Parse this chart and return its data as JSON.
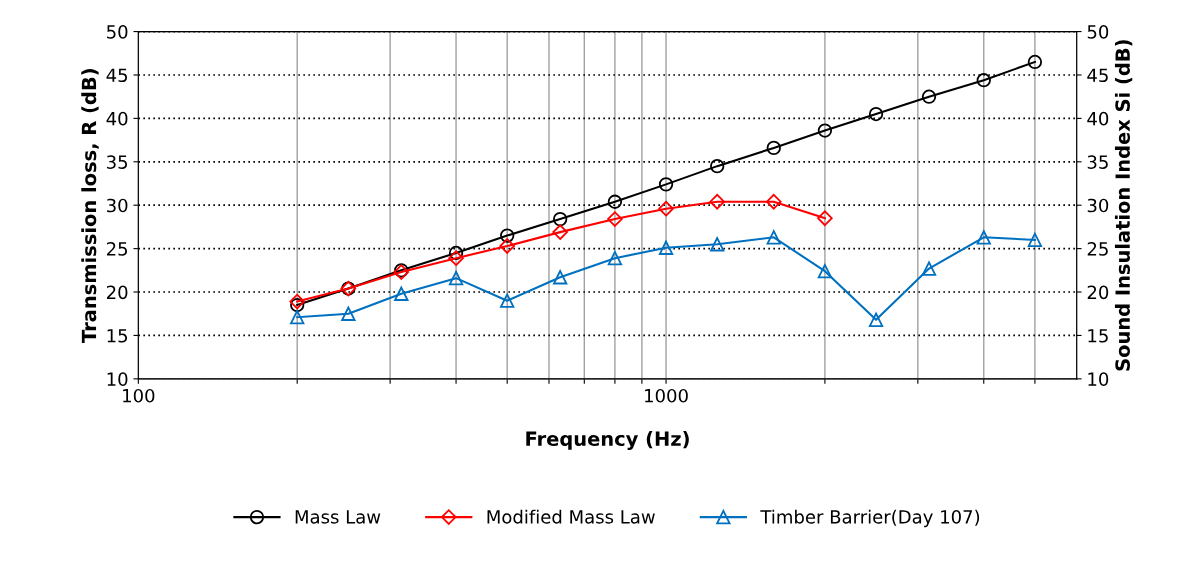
{
  "chart_data": {
    "type": "line",
    "xlabel": "Frequency (Hz)",
    "ylabel": "Transmission loss, R (dB)",
    "y2label": "Sound Insulation Index Si (dB)",
    "x": [
      200,
      250,
      315,
      400,
      500,
      630,
      800,
      1000,
      1250,
      1600,
      2000,
      2500,
      3150,
      4000,
      5000
    ],
    "series": [
      {
        "name": "Mass Law",
        "color": "#000000",
        "marker": "circle",
        "values": [
          18.5,
          20.4,
          22.5,
          24.5,
          26.5,
          28.4,
          30.4,
          32.4,
          34.5,
          36.6,
          38.6,
          40.5,
          42.5,
          44.4,
          46.5
        ]
      },
      {
        "name": "Modified Mass Law",
        "color": "#ff0000",
        "marker": "diamond",
        "values": [
          18.9,
          20.4,
          22.3,
          23.9,
          25.3,
          26.9,
          28.4,
          29.6,
          30.4,
          30.4,
          28.5,
          null,
          null,
          null,
          null
        ]
      },
      {
        "name": "Timber Barrier(Day 107)",
        "color": "#0070c0",
        "marker": "triangle",
        "values": [
          17.1,
          17.5,
          19.8,
          21.6,
          19.0,
          21.7,
          23.9,
          25.1,
          25.5,
          26.3,
          22.4,
          16.8,
          22.7,
          26.3,
          26.0
        ]
      }
    ],
    "log": "x",
    "xlim": [
      100,
      6000
    ],
    "xticks": [
      100,
      {
        "value": 200,
        "label": null
      },
      {
        "value": 300,
        "label": null
      },
      {
        "value": 400,
        "label": null
      },
      {
        "value": 500,
        "label": null
      },
      {
        "value": 600,
        "label": null
      },
      {
        "value": 700,
        "label": null
      },
      {
        "value": 800,
        "label": null
      },
      {
        "value": 900,
        "label": null
      },
      1000,
      {
        "value": 2000,
        "label": null
      },
      {
        "value": 3000,
        "label": null
      },
      {
        "value": 4000,
        "label": null
      },
      {
        "value": 5000,
        "label": null
      }
    ],
    "ylim": [
      10,
      50
    ],
    "yticks": [
      10,
      15,
      20,
      25,
      30,
      35,
      40,
      45,
      50
    ],
    "y2lim": [
      10,
      50
    ],
    "y2ticks": [
      10,
      15,
      20,
      25,
      30,
      35,
      40,
      45,
      50
    ],
    "grid": true,
    "legend": "bottom",
    "line_style": "solid"
  }
}
